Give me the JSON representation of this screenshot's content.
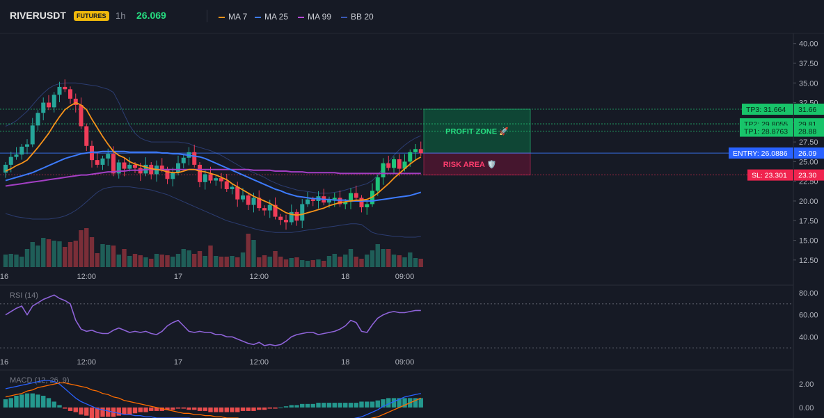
{
  "header": {
    "symbol": "RIVERUSDT",
    "badge": "FUTURES",
    "timeframe": "1h",
    "last_price": "26.069",
    "legend": [
      {
        "label": "MA 7",
        "color": "#f7931a"
      },
      {
        "label": "MA 25",
        "color": "#3d7bfd"
      },
      {
        "label": "MA 99",
        "color": "#b84ad6"
      },
      {
        "label": "BB 20",
        "color": "#3a59b6"
      }
    ]
  },
  "colors": {
    "up": "#26a69a",
    "up_bright": "#1ec47a",
    "down": "#ef3d59",
    "vol_up": "#1f5e58",
    "vol_down": "#7a2e38",
    "grid": "#242833",
    "axis_text": "#b2b5be",
    "tp": "#26de81",
    "entry": "#3d7bfd",
    "sl": "#ff2d55"
  },
  "chart_data": [
    {
      "type": "candlestick",
      "title": "",
      "x_tick_labels": [
        "16",
        "12:00",
        "17",
        "12:00",
        "18",
        "09:00"
      ],
      "y_ticks": [
        12.5,
        15,
        17.5,
        20,
        22.5,
        25,
        27.5,
        30,
        32.5,
        35,
        37.5,
        40
      ],
      "y_tick_labels": [
        "12.50",
        "15.00",
        "17.50",
        "20.00",
        "22.50",
        "25.00",
        "27.50",
        "30.00",
        "32.50",
        "35.00",
        "37.50",
        "40.00"
      ],
      "ylim": [
        11.6,
        41.3
      ],
      "grid": false,
      "close": [
        24.6,
        25.6,
        25.9,
        26.9,
        27.2,
        29.6,
        31.2,
        32.5,
        31.9,
        33.5,
        34.5,
        34.2,
        33.0,
        32.2,
        29.5,
        27.0,
        25.2,
        24.6,
        25.4,
        26.0,
        23.5,
        24.9,
        24.1,
        24.6,
        24.2,
        23.5,
        24.6,
        23.4,
        24.5,
        24.0,
        22.8,
        23.6,
        24.8,
        25.5,
        26.2,
        24.6,
        22.4,
        23.4,
        22.6,
        22.9,
        22.5,
        21.5,
        21.8,
        20.2,
        20.7,
        19.5,
        20.4,
        19.1,
        18.8,
        19.5,
        18.0,
        17.6,
        17.3,
        18.6,
        17.5,
        19.6,
        20.2,
        20.0,
        20.6,
        19.8,
        20.2,
        20.4,
        19.6,
        19.9,
        21.0,
        20.4,
        19.2,
        19.6,
        21.3,
        23.0,
        24.8,
        24.2,
        25.3,
        24.1,
        25.0,
        26.2,
        26.6,
        26.069
      ],
      "volume": [
        1.8,
        1.9,
        1.8,
        1.5,
        2.6,
        3.6,
        3.1,
        4.2,
        4.0,
        3.8,
        3.7,
        2.9,
        3.6,
        3.8,
        5.3,
        5.6,
        4.3,
        2.0,
        3.3,
        3.2,
        3.1,
        1.8,
        2.6,
        1.6,
        1.9,
        1.7,
        1.4,
        1.2,
        1.9,
        1.8,
        1.7,
        1.5,
        1.9,
        2.6,
        2.4,
        1.9,
        2.3,
        1.6,
        3.1,
        1.6,
        1.5,
        1.5,
        1.6,
        1.4,
        2.1,
        4.8,
        3.9,
        1.4,
        1.7,
        1.5,
        2.3,
        1.5,
        1.1,
        1.3,
        1.4,
        1.0,
        0.9,
        1.0,
        1.1,
        0.9,
        1.6,
        1.9,
        1.5,
        1.8,
        2.6,
        1.5,
        1.2,
        1.8,
        2.4,
        3.3,
        2.6,
        2.6,
        1.8,
        1.7,
        1.4,
        2.1,
        1.3,
        1.2
      ],
      "ma7": [
        23.8,
        24.1,
        24.5,
        24.8,
        25.2,
        26.0,
        26.8,
        27.7,
        28.6,
        29.7,
        30.7,
        31.6,
        32.1,
        32.5,
        32.2,
        31.6,
        30.4,
        29.3,
        28.2,
        27.2,
        26.3,
        25.8,
        25.5,
        25.0,
        24.7,
        24.5,
        24.3,
        24.1,
        24.0,
        23.9,
        23.7,
        23.6,
        23.6,
        23.8,
        24.0,
        24.0,
        23.8,
        23.7,
        23.5,
        23.3,
        23.0,
        22.7,
        22.2,
        21.8,
        21.4,
        21.0,
        20.6,
        20.3,
        20.0,
        19.7,
        19.3,
        18.9,
        18.5,
        18.3,
        18.2,
        18.3,
        18.5,
        18.7,
        18.9,
        19.1,
        19.4,
        19.6,
        19.8,
        19.9,
        20.0,
        20.1,
        20.1,
        20.2,
        20.5,
        21.0,
        21.6,
        22.2,
        22.9,
        23.5,
        24.1,
        24.7,
        25.2,
        25.6
      ],
      "ma25": [
        22.6,
        22.8,
        23.0,
        23.2,
        23.4,
        23.6,
        23.9,
        24.2,
        24.5,
        24.8,
        25.1,
        25.4,
        25.6,
        25.8,
        26.0,
        26.1,
        26.2,
        26.2,
        26.3,
        26.3,
        26.3,
        26.3,
        26.3,
        26.2,
        26.2,
        26.2,
        26.2,
        26.2,
        26.2,
        26.1,
        26.1,
        26.0,
        26.0,
        25.9,
        25.8,
        25.7,
        25.6,
        25.4,
        25.1,
        24.8,
        24.5,
        24.2,
        23.9,
        23.6,
        23.3,
        23.0,
        22.7,
        22.4,
        22.1,
        21.8,
        21.5,
        21.3,
        21.0,
        20.8,
        20.6,
        20.5,
        20.4,
        20.3,
        20.3,
        20.2,
        20.2,
        20.1,
        20.1,
        20.1,
        20.0,
        20.0,
        20.0,
        20.0,
        20.0,
        20.1,
        20.2,
        20.3,
        20.4,
        20.5,
        20.6,
        20.7,
        20.9,
        21.1
      ],
      "ma99": [
        21.9,
        22.0,
        22.1,
        22.2,
        22.3,
        22.4,
        22.5,
        22.6,
        22.7,
        22.8,
        22.9,
        23.0,
        23.1,
        23.2,
        23.3,
        23.3,
        23.4,
        23.5,
        23.6,
        23.7,
        23.7,
        23.8,
        23.8,
        23.9,
        23.9,
        23.9,
        24.0,
        24.0,
        24.0,
        24.0,
        24.0,
        24.0,
        24.0,
        24.0,
        24.0,
        24.0,
        24.0,
        24.0,
        24.0,
        24.0,
        24.0,
        24.0,
        24.0,
        24.0,
        24.0,
        24.0,
        23.9,
        23.9,
        23.9,
        23.9,
        23.8,
        23.8,
        23.8,
        23.7,
        23.7,
        23.7,
        23.6,
        23.6,
        23.6,
        23.6,
        23.6,
        23.6,
        23.5,
        23.5,
        23.5,
        23.5,
        23.5,
        23.5,
        23.5,
        23.5,
        23.5,
        23.5,
        23.5,
        23.5,
        23.5,
        23.5,
        23.5,
        23.5
      ],
      "bb_upper": [
        29.5,
        29.8,
        30.2,
        30.8,
        31.4,
        32.2,
        33.0,
        33.7,
        34.3,
        34.7,
        34.9,
        35.0,
        35.0,
        35.0,
        34.9,
        34.8,
        34.7,
        34.6,
        34.4,
        34.2,
        33.8,
        32.5,
        31.0,
        29.6,
        28.6,
        28.0,
        27.7,
        27.5,
        27.5,
        27.5,
        27.5,
        27.5,
        27.5,
        27.4,
        27.3,
        27.0,
        26.8,
        26.6,
        26.4,
        26.1,
        25.8,
        25.4,
        25.0,
        24.6,
        24.2,
        23.9,
        23.6,
        23.3,
        23.0,
        22.6,
        22.3,
        22.0,
        21.8,
        21.6,
        21.4,
        21.3,
        21.2,
        21.1,
        21.0,
        21.0,
        21.0,
        21.1,
        21.2,
        21.4,
        21.6,
        21.8,
        22.0,
        22.2,
        22.6,
        23.3,
        24.2,
        25.0,
        25.8,
        26.5,
        27.1,
        27.6,
        28.0,
        28.3
      ],
      "bb_lower": [
        18.4,
        18.2,
        18.0,
        17.9,
        17.8,
        17.7,
        17.7,
        17.7,
        17.7,
        17.8,
        17.9,
        18.1,
        18.4,
        18.8,
        19.3,
        19.9,
        20.5,
        21.1,
        21.5,
        21.7,
        21.8,
        21.8,
        21.8,
        21.8,
        21.7,
        21.6,
        21.5,
        21.4,
        21.2,
        21.0,
        20.8,
        20.5,
        20.2,
        19.9,
        19.6,
        19.3,
        19.0,
        18.7,
        18.4,
        18.1,
        17.8,
        17.5,
        17.3,
        17.1,
        16.9,
        16.7,
        16.5,
        16.3,
        16.2,
        16.1,
        16.0,
        16.0,
        16.0,
        16.0,
        16.1,
        16.2,
        16.3,
        16.4,
        16.5,
        16.6,
        16.7,
        16.8,
        16.9,
        17.0,
        17.1,
        17.1,
        17.0,
        16.5,
        16.0,
        15.8,
        15.7,
        15.6,
        15.5,
        15.5,
        15.4,
        15.4,
        15.4,
        15.5
      ],
      "levels": [
        {
          "name": "TP3",
          "label": "TP3: 31.664",
          "axis_label": "31.66",
          "value": 31.664
        },
        {
          "name": "TP2",
          "label": "TP2: 29.8055",
          "axis_label": "29.81",
          "value": 29.8055
        },
        {
          "name": "TP1",
          "label": "TP1: 28.8763",
          "axis_label": "28.88",
          "value": 28.8763
        },
        {
          "name": "ENTRY",
          "label": "ENTRY: 26.0886",
          "axis_label": "26.09",
          "value": 26.0886
        },
        {
          "name": "SL",
          "label": "SL: 23.301",
          "axis_label": "23.30",
          "value": 23.301
        }
      ],
      "zones": [
        {
          "name": "profit",
          "label": "PROFIT ZONE 🚀",
          "from": 26.0886,
          "to": 31.664
        },
        {
          "name": "risk",
          "label": "RISK AREA 🛡️",
          "from": 23.301,
          "to": 26.0886
        }
      ]
    },
    {
      "type": "line",
      "title": "RSI (14)",
      "y_ticks": [
        40,
        60,
        80
      ],
      "y_tick_labels": [
        "40.00",
        "60.00",
        "80.00"
      ],
      "ylim": [
        25,
        87
      ],
      "bands": [
        70,
        30
      ],
      "values": [
        60,
        63,
        66,
        68,
        60,
        68,
        71,
        74,
        76,
        78,
        75,
        73,
        70,
        55,
        47,
        45,
        46,
        44,
        43,
        43,
        46,
        48,
        46,
        44,
        45,
        44,
        45,
        43,
        42,
        45,
        50,
        53,
        55,
        50,
        45,
        44,
        45,
        44,
        44,
        42,
        42,
        40,
        40,
        38,
        36,
        34,
        33,
        35,
        32,
        33,
        32,
        33,
        36,
        40,
        42,
        43,
        44,
        44,
        42,
        43,
        44,
        45,
        47,
        50,
        55,
        53,
        45,
        44,
        51,
        57,
        60,
        62,
        63,
        62,
        62,
        63,
        64,
        64
      ]
    },
    {
      "type": "bar",
      "title": "MACD (12, 26, 9)",
      "y_ticks": [
        0,
        2
      ],
      "y_tick_labels": [
        "0.00",
        "2.00"
      ],
      "ylim": [
        -0.9,
        3.2
      ],
      "histogram": [
        0.7,
        0.8,
        1.0,
        1.1,
        1.2,
        1.2,
        1.1,
        1.0,
        0.8,
        0.5,
        0.2,
        -0.1,
        -0.3,
        -0.4,
        -0.6,
        -0.7,
        -0.9,
        -0.9,
        -0.8,
        -0.8,
        -0.8,
        -0.7,
        -0.6,
        -0.6,
        -0.5,
        -0.4,
        -0.4,
        -0.3,
        -0.3,
        -0.3,
        -0.2,
        -0.2,
        -0.1,
        -0.1,
        -0.2,
        -0.2,
        -0.3,
        -0.3,
        -0.4,
        -0.4,
        -0.4,
        -0.4,
        -0.4,
        -0.4,
        -0.3,
        -0.3,
        -0.3,
        -0.2,
        -0.2,
        -0.1,
        -0.1,
        0.0,
        0.1,
        0.2,
        0.2,
        0.3,
        0.3,
        0.3,
        0.4,
        0.4,
        0.4,
        0.4,
        0.4,
        0.4,
        0.4,
        0.4,
        0.5,
        0.5,
        0.5,
        0.6,
        0.7,
        0.8,
        0.8,
        0.8,
        0.8,
        0.8,
        0.8,
        0.8
      ],
      "macd": [
        1.6,
        1.7,
        1.8,
        1.9,
        2.0,
        2.1,
        2.2,
        2.3,
        2.3,
        2.2,
        2.0,
        1.6,
        1.2,
        0.8,
        0.5,
        0.3,
        0.1,
        -0.1,
        -0.2,
        -0.3,
        -0.4,
        -0.5,
        -0.6,
        -0.6,
        -0.7,
        -0.7,
        -0.8,
        -0.8,
        -0.9,
        -0.9,
        -0.9,
        -0.9,
        -0.9,
        -0.9,
        -0.9,
        -1.0,
        -1.0,
        -1.0,
        -1.0,
        -1.0,
        -1.0,
        -1.0,
        -1.0,
        -1.0,
        -1.0,
        -1.0,
        -1.0,
        -1.0,
        -1.0,
        -1.0,
        -1.0,
        -1.0,
        -1.0,
        -1.0,
        -1.0,
        -1.0,
        -1.0,
        -1.0,
        -1.0,
        -1.0,
        -1.0,
        -1.0,
        -1.0,
        -1.0,
        -1.0,
        -0.9,
        -0.8,
        -0.6,
        -0.4,
        -0.2,
        0.1,
        0.3,
        0.5,
        0.7,
        0.9,
        1.0,
        1.1,
        1.2
      ],
      "signal": [
        0.9,
        1.0,
        1.1,
        1.2,
        1.4,
        1.5,
        1.7,
        1.8,
        1.9,
        2.0,
        2.1,
        2.1,
        2.0,
        1.9,
        1.8,
        1.7,
        1.5,
        1.4,
        1.2,
        1.1,
        0.9,
        0.8,
        0.6,
        0.5,
        0.4,
        0.3,
        0.2,
        0.1,
        0.0,
        -0.1,
        -0.2,
        -0.3,
        -0.4,
        -0.5,
        -0.5,
        -0.6,
        -0.6,
        -0.7,
        -0.7,
        -0.8,
        -0.8,
        -0.9,
        -0.9,
        -0.9,
        -1.0,
        -1.0,
        -1.0,
        -1.0,
        -1.0,
        -1.0,
        -1.0,
        -1.0,
        -1.0,
        -1.0,
        -1.0,
        -1.0,
        -1.0,
        -1.0,
        -1.0,
        -1.0,
        -1.0,
        -1.0,
        -1.0,
        -1.0,
        -1.0,
        -1.0,
        -1.0,
        -1.0,
        -0.9,
        -0.8,
        -0.6,
        -0.4,
        -0.2,
        0.0,
        0.2,
        0.4,
        0.6,
        0.8
      ]
    }
  ]
}
